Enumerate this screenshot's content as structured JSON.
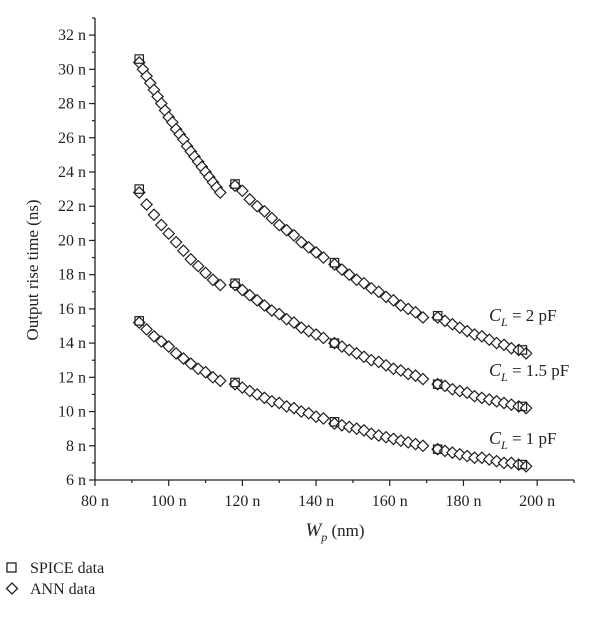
{
  "chart_data": {
    "type": "scatter",
    "xlabel": "W_p (nm)",
    "ylabel": "Output rise time (ns)",
    "xlim": [
      80,
      210
    ],
    "ylim": [
      6,
      33
    ],
    "x_ticks": [
      "80 n",
      "100 n",
      "120 n",
      "140 n",
      "160 n",
      "180 n",
      "200 n"
    ],
    "y_ticks": [
      "6 n",
      "8 n",
      "10 n",
      "12 n",
      "14 n",
      "16 n",
      "18 n",
      "20 n",
      "22 n",
      "24 n",
      "26 n",
      "28 n",
      "30 n",
      "32 n"
    ],
    "legend": {
      "placement": "bottom-left",
      "entries": [
        {
          "label": "SPICE data",
          "marker": "square"
        },
        {
          "label": "ANN data",
          "marker": "diamond"
        }
      ]
    },
    "curve_labels": [
      {
        "var": "C",
        "sub": "L",
        "value": " = 2 pF"
      },
      {
        "var": "C",
        "sub": "L",
        "value": " = 1.5 pF"
      },
      {
        "var": "C",
        "sub": "L",
        "value": " = 1 pF"
      }
    ],
    "series": [
      {
        "name": "SPICE data",
        "group": "C_L = 2 pF",
        "marker": "square",
        "x": [
          92,
          118,
          145,
          173,
          196
        ],
        "y": [
          30.6,
          23.3,
          18.7,
          15.6,
          13.6
        ]
      },
      {
        "name": "ANN data",
        "group": "C_L = 2 pF",
        "marker": "diamond",
        "x": [
          92,
          93,
          94,
          95,
          96,
          97,
          98,
          99,
          100,
          101,
          102,
          103,
          104,
          105,
          106,
          107,
          108,
          109,
          110,
          111,
          112,
          113,
          114,
          118,
          120,
          122,
          124,
          126,
          128,
          130,
          132,
          134,
          136,
          138,
          140,
          142,
          145,
          147,
          149,
          151,
          153,
          155,
          157,
          159,
          161,
          163,
          165,
          167,
          169,
          173,
          175,
          177,
          179,
          181,
          183,
          185,
          187,
          189,
          191,
          193,
          195,
          197
        ],
        "y": [
          30.4,
          30.0,
          29.6,
          29.2,
          28.8,
          28.4,
          28.0,
          27.6,
          27.2,
          26.9,
          26.5,
          26.2,
          25.9,
          25.5,
          25.2,
          24.9,
          24.6,
          24.3,
          24.0,
          23.7,
          23.4,
          23.1,
          22.8,
          23.2,
          22.9,
          22.4,
          22.0,
          21.7,
          21.3,
          20.9,
          20.6,
          20.3,
          19.9,
          19.6,
          19.3,
          19.0,
          18.6,
          18.3,
          18.0,
          17.7,
          17.5,
          17.2,
          17.0,
          16.7,
          16.5,
          16.2,
          16.0,
          15.8,
          15.5,
          15.5,
          15.3,
          15.1,
          14.9,
          14.7,
          14.5,
          14.4,
          14.2,
          14.0,
          13.9,
          13.7,
          13.6,
          13.4
        ]
      },
      {
        "name": "SPICE data",
        "group": "C_L = 1.5 pF",
        "marker": "square",
        "x": [
          92,
          118,
          145,
          173,
          196
        ],
        "y": [
          23.0,
          17.5,
          14.0,
          11.6,
          10.3
        ]
      },
      {
        "name": "ANN data",
        "group": "C_L = 1.5 pF",
        "marker": "diamond",
        "x": [
          92,
          94,
          96,
          98,
          100,
          102,
          104,
          106,
          108,
          110,
          112,
          114,
          118,
          120,
          122,
          124,
          126,
          128,
          130,
          132,
          134,
          136,
          138,
          140,
          142,
          145,
          147,
          149,
          151,
          153,
          155,
          157,
          159,
          161,
          163,
          165,
          167,
          169,
          173,
          175,
          177,
          179,
          181,
          183,
          185,
          187,
          189,
          191,
          193,
          195,
          197
        ],
        "y": [
          22.8,
          22.1,
          21.5,
          20.9,
          20.4,
          19.9,
          19.4,
          18.9,
          18.5,
          18.1,
          17.7,
          17.4,
          17.4,
          17.1,
          16.8,
          16.5,
          16.2,
          15.9,
          15.7,
          15.4,
          15.2,
          14.9,
          14.7,
          14.5,
          14.3,
          14.0,
          13.8,
          13.6,
          13.4,
          13.2,
          13.0,
          12.9,
          12.7,
          12.5,
          12.4,
          12.2,
          12.1,
          11.9,
          11.6,
          11.5,
          11.3,
          11.2,
          11.1,
          10.9,
          10.8,
          10.7,
          10.6,
          10.5,
          10.4,
          10.3,
          10.2
        ]
      },
      {
        "name": "SPICE data",
        "group": "C_L = 1 pF",
        "marker": "square",
        "x": [
          92,
          118,
          145,
          173,
          196
        ],
        "y": [
          15.3,
          11.7,
          9.4,
          7.8,
          6.9
        ]
      },
      {
        "name": "ANN data",
        "group": "C_L = 1 pF",
        "marker": "diamond",
        "x": [
          92,
          94,
          96,
          98,
          100,
          102,
          104,
          106,
          108,
          110,
          112,
          114,
          118,
          120,
          122,
          124,
          126,
          128,
          130,
          132,
          134,
          136,
          138,
          140,
          142,
          145,
          147,
          149,
          151,
          153,
          155,
          157,
          159,
          161,
          163,
          165,
          167,
          169,
          173,
          175,
          177,
          179,
          181,
          183,
          185,
          187,
          189,
          191,
          193,
          195,
          197
        ],
        "y": [
          15.2,
          14.8,
          14.4,
          14.1,
          13.8,
          13.4,
          13.1,
          12.8,
          12.5,
          12.3,
          12.0,
          11.8,
          11.6,
          11.4,
          11.2,
          11.0,
          10.8,
          10.6,
          10.5,
          10.3,
          10.2,
          10.0,
          9.9,
          9.7,
          9.6,
          9.3,
          9.2,
          9.1,
          9.0,
          8.9,
          8.7,
          8.6,
          8.5,
          8.4,
          8.3,
          8.2,
          8.1,
          8.0,
          7.8,
          7.7,
          7.6,
          7.5,
          7.4,
          7.3,
          7.3,
          7.2,
          7.1,
          7.0,
          7.0,
          6.9,
          6.8
        ]
      }
    ]
  }
}
